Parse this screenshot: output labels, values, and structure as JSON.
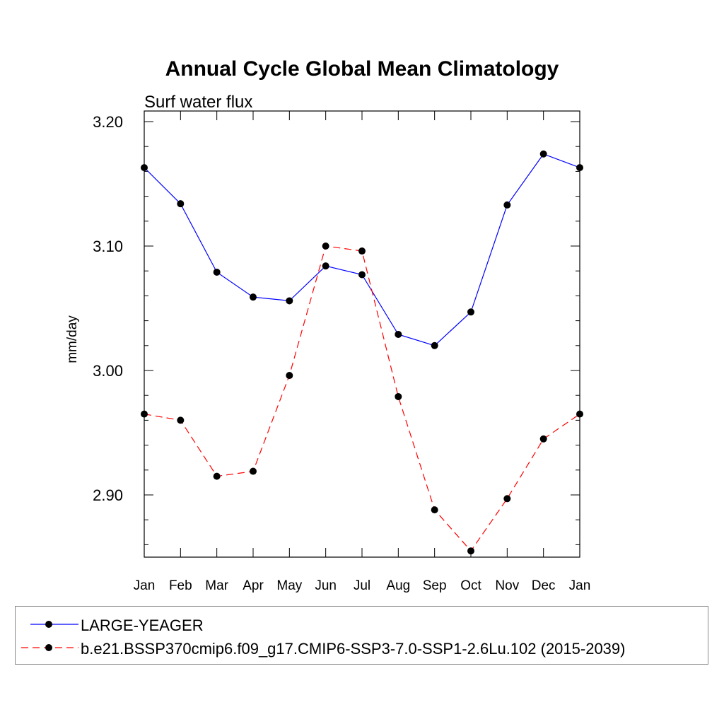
{
  "chart_data": {
    "type": "line",
    "title": "Annual Cycle Global Mean Climatology",
    "subtitle": "Surf water flux",
    "ylabel": "mm/day",
    "xlabel": "",
    "categories": [
      "Jan",
      "Feb",
      "Mar",
      "Apr",
      "May",
      "Jun",
      "Jul",
      "Aug",
      "Sep",
      "Oct",
      "Nov",
      "Dec",
      "Jan"
    ],
    "ylim": [
      2.85,
      3.21
    ],
    "yticks": [
      "3.20",
      "3.10",
      "3.00",
      "2.90"
    ],
    "ytick_values": [
      3.2,
      3.1,
      3.0,
      2.9
    ],
    "grid": false,
    "series": [
      {
        "name": "LARGE-YEAGER",
        "color": "#0000ff",
        "dash": "solid",
        "values": [
          3.163,
          3.134,
          3.079,
          3.059,
          3.056,
          3.084,
          3.077,
          3.029,
          3.02,
          3.047,
          3.133,
          3.174,
          3.163
        ]
      },
      {
        "name": "b.e21.BSSP370cmip6.f09_g17.CMIP6-SSP3-7.0-SSP1-2.6Lu.102 (2015-2039)",
        "color": "#ff0000",
        "dash": "dashed",
        "values": [
          2.965,
          2.96,
          2.915,
          2.919,
          2.996,
          3.1,
          3.096,
          2.979,
          2.888,
          2.855,
          2.897,
          2.945,
          2.965
        ]
      }
    ],
    "legend_position": "bottom"
  }
}
